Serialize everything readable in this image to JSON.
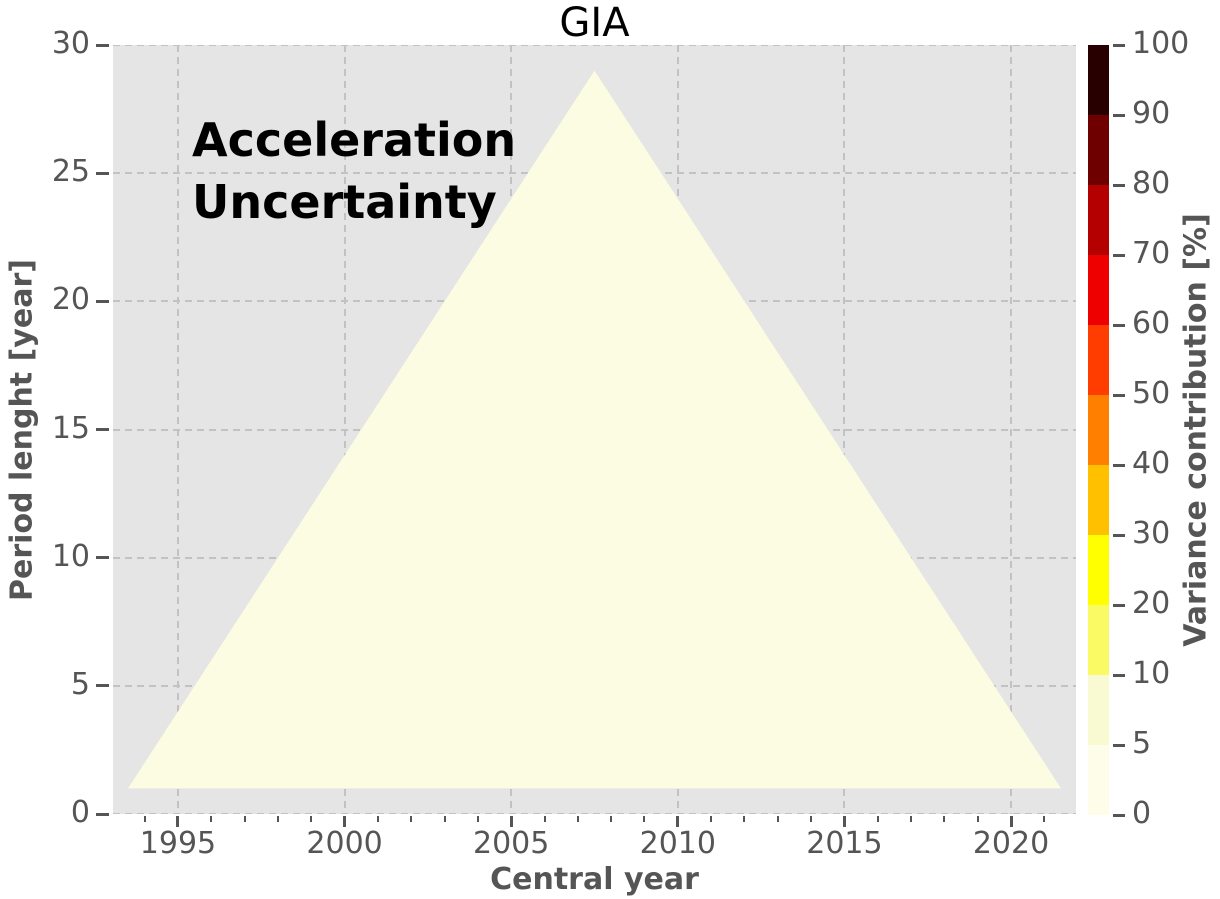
{
  "chart_data": {
    "type": "area",
    "title": "GIA",
    "xlabel": "Central year",
    "ylabel": "Period lenght [year]",
    "colorbar_label": "Variance contribution [%]",
    "annotation_lines": [
      "Acceleration",
      "Uncertainty"
    ],
    "xlim": [
      1993.05,
      2021.95
    ],
    "ylim": [
      0,
      30
    ],
    "xticks": [
      1995,
      2000,
      2005,
      2010,
      2015,
      2020
    ],
    "yticks": [
      0,
      5,
      10,
      15,
      20,
      25,
      30
    ],
    "minor_xticks": {
      "start": 1994,
      "end": 2021,
      "step": 1
    },
    "grid": true,
    "legend": "none",
    "region": {
      "name": "acceleration-uncertainty-variance-triangle",
      "vertices_xy": [
        [
          1993.5,
          1
        ],
        [
          2021.5,
          1
        ],
        [
          2007.5,
          29
        ]
      ],
      "value_band_percent": [
        0,
        5
      ],
      "fill_color": "#fcfce2"
    },
    "colorbar": {
      "orientation": "vertical",
      "position": "right",
      "levels_percent": [
        0,
        5,
        10,
        20,
        30,
        40,
        50,
        60,
        70,
        80,
        90,
        100
      ],
      "colors_low_to_high": [
        "#fdfdea",
        "#fafad2",
        "#fafa64",
        "#ffff00",
        "#ffc000",
        "#ff8000",
        "#ff3d00",
        "#ef0000",
        "#b40000",
        "#6e0000",
        "#290000"
      ]
    },
    "style": {
      "figure_background": "#ffffff",
      "plot_background": "#e5e5e5",
      "grid_color": "#c2c2c2",
      "grid_dashed": true,
      "tick_color": "#555555",
      "axis_label_color": "#555555",
      "title_color": "#000000",
      "annotation_color": "#000000"
    }
  }
}
